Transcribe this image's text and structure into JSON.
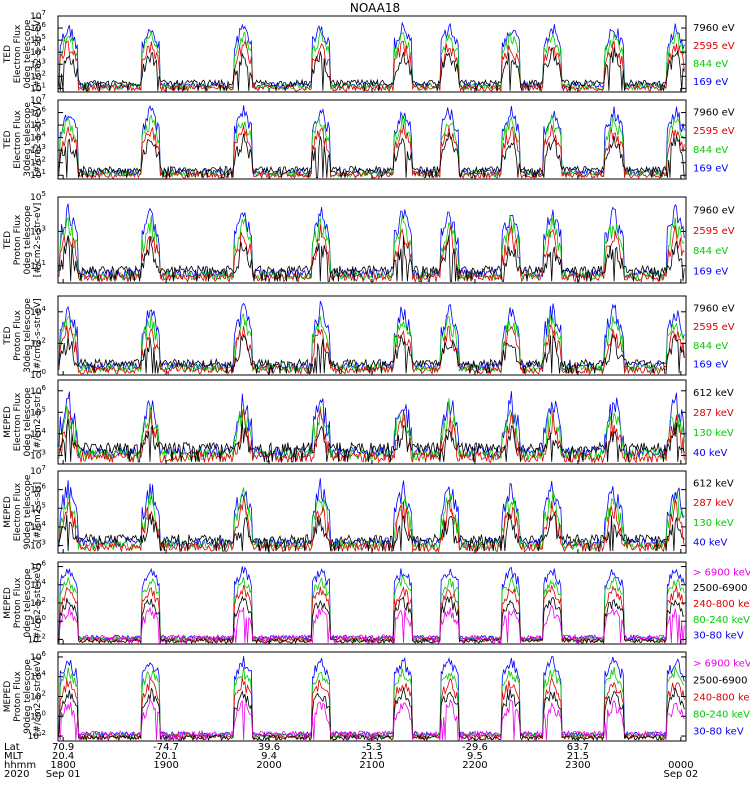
{
  "chart_data": {
    "type": "line",
    "title": "NOAA18",
    "panels": [
      {
        "ylabel_lines": [
          "TED",
          "Electron Flux",
          "0deg telescope",
          "[#/cm2-s-str-eV]"
        ],
        "ytick_exponents": [
          1,
          2,
          3,
          4,
          5,
          6,
          7
        ],
        "ylim_exp": [
          0.7,
          7
        ],
        "series": [
          {
            "name": "7960 eV",
            "color": "#000000"
          },
          {
            "name": "2595 eV",
            "color": "#dd0000"
          },
          {
            "name": "844 eV",
            "color": "#00cc00"
          },
          {
            "name": "169 eV",
            "color": "#0000ff"
          }
        ]
      },
      {
        "ylabel_lines": [
          "TED",
          "Electron Flux",
          "30deg telescope",
          "[#/cm2-s-str-eV]"
        ],
        "ytick_exponents": [
          1,
          2,
          3,
          4,
          5,
          6,
          7
        ],
        "ylim_exp": [
          0.7,
          7
        ],
        "series": [
          {
            "name": "7960 eV",
            "color": "#000000"
          },
          {
            "name": "2595 eV",
            "color": "#dd0000"
          },
          {
            "name": "844 eV",
            "color": "#00cc00"
          },
          {
            "name": "169 eV",
            "color": "#0000ff"
          }
        ]
      },
      {
        "ylabel_lines": [
          "TED",
          "Proton Flux",
          "0deg telescope",
          "[#/cm2-s-str-eV]"
        ],
        "ytick_exponents": [
          1,
          3,
          5
        ],
        "ylim_exp": [
          0,
          5
        ],
        "series": [
          {
            "name": "7960 eV",
            "color": "#000000"
          },
          {
            "name": "2595 eV",
            "color": "#dd0000"
          },
          {
            "name": "844 eV",
            "color": "#00cc00"
          },
          {
            "name": "169 eV",
            "color": "#0000ff"
          }
        ]
      },
      {
        "ylabel_lines": [
          "TED",
          "Proton Flux",
          "30deg telescope",
          "[#/cm2-s-str-eV]"
        ],
        "ytick_exponents": [
          0,
          2,
          4
        ],
        "ylim_exp": [
          0,
          5
        ],
        "series": [
          {
            "name": "7960 eV",
            "color": "#000000"
          },
          {
            "name": "2595 eV",
            "color": "#dd0000"
          },
          {
            "name": "844 eV",
            "color": "#00cc00"
          },
          {
            "name": "169 eV",
            "color": "#0000ff"
          }
        ]
      },
      {
        "ylabel_lines": [
          "MEPED",
          "Electron Flux",
          "0deg telescope",
          "[#/cm2-s-str]"
        ],
        "ytick_exponents": [
          3,
          4,
          5,
          6
        ],
        "ylim_exp": [
          2.6,
          6.5
        ],
        "series": [
          {
            "name": "612 keV",
            "color": "#000000"
          },
          {
            "name": "287 keV",
            "color": "#dd0000"
          },
          {
            "name": "130 keV",
            "color": "#00cc00"
          },
          {
            "name": "40 keV",
            "color": "#0000ff"
          }
        ]
      },
      {
        "ylabel_lines": [
          "MEPED",
          "Electron Flux",
          "90deg telescope",
          "[#/cm2-s-str]"
        ],
        "ytick_exponents": [
          3,
          4,
          5,
          6,
          7
        ],
        "ylim_exp": [
          2.6,
          7
        ],
        "series": [
          {
            "name": "612 keV",
            "color": "#000000"
          },
          {
            "name": "287 keV",
            "color": "#dd0000"
          },
          {
            "name": "130 keV",
            "color": "#00cc00"
          },
          {
            "name": "40 keV",
            "color": "#0000ff"
          }
        ]
      },
      {
        "ylabel_lines": [
          "MEPED",
          "Proton Flux",
          "0deg telescope",
          "[#/cm2-s-str-keV]"
        ],
        "ytick_exponents": [
          -2,
          0,
          2,
          4,
          6
        ],
        "ylim_exp": [
          -2.5,
          6.5
        ],
        "series": [
          {
            "name": "> 6900 keV",
            "color": "#ee00ee"
          },
          {
            "name": "2500-6900",
            "color": "#000000"
          },
          {
            "name": "240-800 keV",
            "color": "#dd0000"
          },
          {
            "name": "80-240 keV",
            "color": "#00cc00"
          },
          {
            "name": "30-80 keV",
            "color": "#0000ff"
          }
        ]
      },
      {
        "ylabel_lines": [
          "MEPED",
          "Proton Flux",
          "90deg telescope",
          "[#/cm2-s-str-keV]"
        ],
        "ytick_exponents": [
          -2,
          0,
          2,
          4,
          6
        ],
        "ylim_exp": [
          -2.5,
          6.5
        ],
        "series": [
          {
            "name": "> 6900 keV",
            "color": "#ee00ee"
          },
          {
            "name": "2500-6900",
            "color": "#000000"
          },
          {
            "name": "240-800 keV",
            "color": "#dd0000"
          },
          {
            "name": "80-240 keV",
            "color": "#00cc00"
          },
          {
            "name": "30-80 keV",
            "color": "#0000ff"
          }
        ]
      }
    ],
    "passes_utc_hours": [
      18.05,
      18.85,
      19.75,
      20.5,
      21.3,
      21.75,
      22.35,
      22.75,
      23.35,
      23.95
    ],
    "x_axis": {
      "row_labels": [
        "Lat",
        "MLT",
        "hhmm",
        "2020"
      ],
      "columns": [
        {
          "t": 18.0,
          "lat": "70.9",
          "mlt": "20.4",
          "hhmm": "1800",
          "date": "Sep 01"
        },
        {
          "t": 19.0,
          "lat": "-74.7",
          "mlt": "20.1",
          "hhmm": "1900",
          "date": ""
        },
        {
          "t": 20.0,
          "lat": "39.6",
          "mlt": "9.4",
          "hhmm": "2000",
          "date": ""
        },
        {
          "t": 21.0,
          "lat": "-5.3",
          "mlt": "21.5",
          "hhmm": "2100",
          "date": ""
        },
        {
          "t": 22.0,
          "lat": "-29.6",
          "mlt": "9.5",
          "hhmm": "2200",
          "date": ""
        },
        {
          "t": 23.0,
          "lat": "63.7",
          "mlt": "21.5",
          "hhmm": "2300",
          "date": ""
        },
        {
          "t": 24.0,
          "lat": "",
          "mlt": "",
          "hhmm": "0000",
          "date": "Sep 02"
        }
      ],
      "xlim_hours": [
        17.95,
        24.05
      ]
    }
  }
}
